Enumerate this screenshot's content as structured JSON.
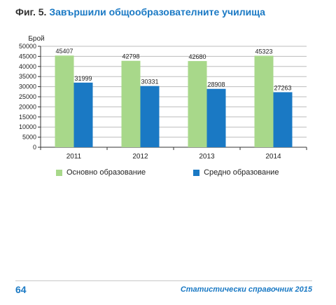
{
  "figure": {
    "prefix": "Фиг. 5.",
    "name": "Завършили общообразователните училища"
  },
  "chart_data": {
    "type": "bar",
    "title": "Завършили общообразователните училища",
    "ylabel": "Брой",
    "xlabel": "",
    "categories": [
      "2011",
      "2012",
      "2013",
      "2014"
    ],
    "ylim": [
      0,
      50000
    ],
    "yticks": [
      "0",
      "5000",
      "10000",
      "15000",
      "20000",
      "25000",
      "30000",
      "35000",
      "40000",
      "45000",
      "50000"
    ],
    "ytick_values": [
      0,
      5000,
      10000,
      15000,
      20000,
      25000,
      30000,
      35000,
      40000,
      45000,
      50000
    ],
    "grid": true,
    "legend_position": "bottom",
    "series": [
      {
        "name": "Основно образование",
        "values": [
          45407,
          42798,
          42680,
          45323
        ],
        "color": "#a8d88a"
      },
      {
        "name": "Средно образование",
        "values": [
          31999,
          30331,
          28908,
          27263
        ],
        "color": "#1a79c4"
      }
    ]
  },
  "footer": {
    "page_number": "64",
    "book_title": "Статистически справочник 2015"
  }
}
